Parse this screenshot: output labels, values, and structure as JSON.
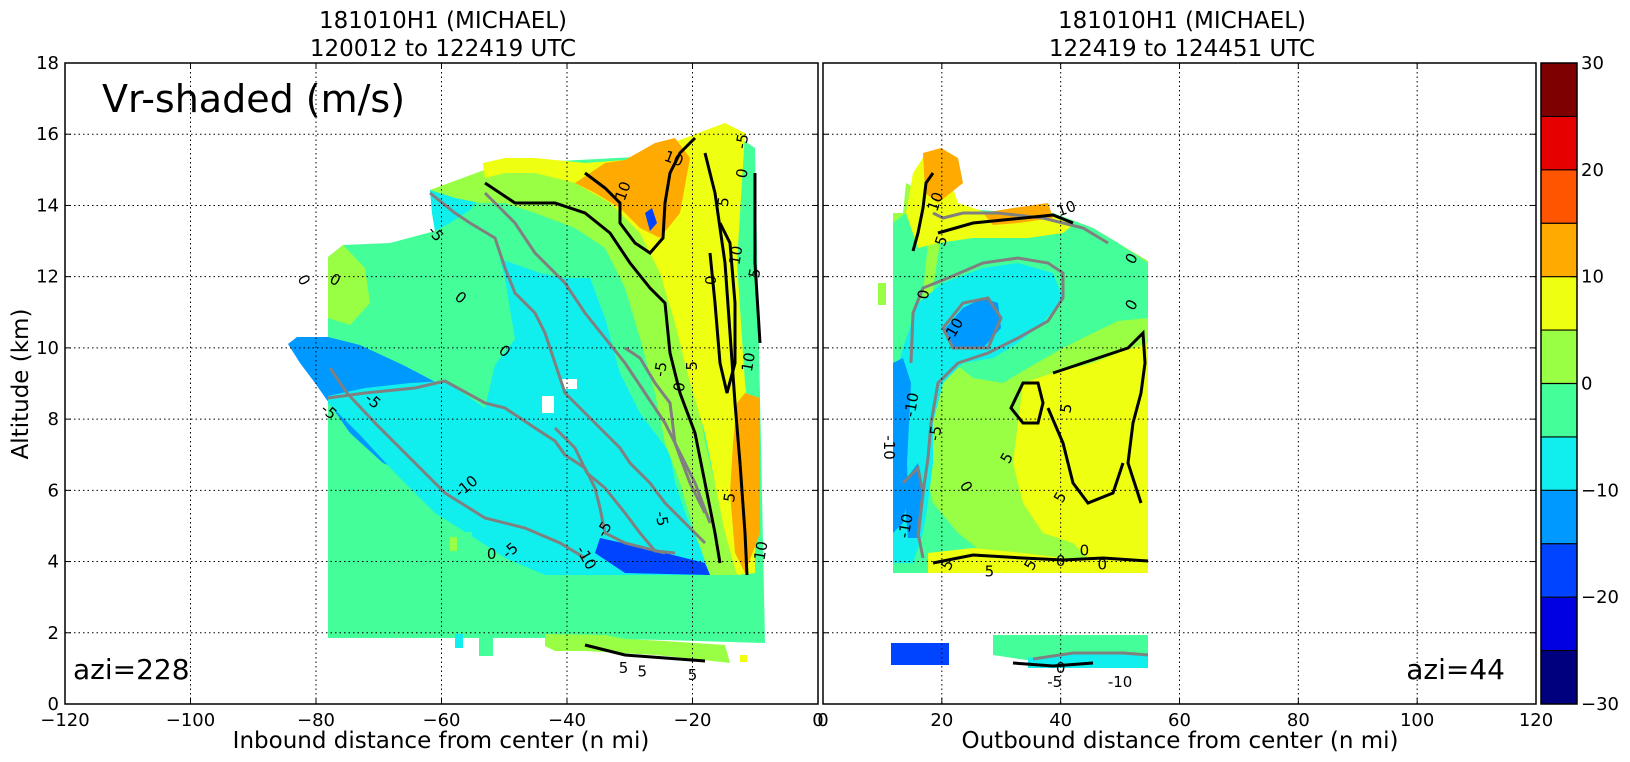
{
  "chart_data": [
    {
      "type": "heatmap",
      "panel": "left",
      "title_line1": "181010H1 (MICHAEL)",
      "title_line2": "120012 to 122419 UTC",
      "xlabel": "Inbound distance from center (n mi)",
      "ylabel": "Altitude (km)",
      "xlim": [
        -120,
        0
      ],
      "ylim": [
        0,
        18
      ],
      "x_ticks": [
        -120,
        -100,
        -80,
        -60,
        -40,
        -20,
        0
      ],
      "y_ticks": [
        0,
        2,
        4,
        6,
        8,
        10,
        12,
        14,
        16,
        18
      ],
      "grid": true,
      "annotation_main": "Vr-shaded (m/s)",
      "annotation_azi": "azi=228",
      "contour_labels": [
        {
          "text": "0",
          "x": -82,
          "y": 11.9,
          "rot": 60
        },
        {
          "text": "0",
          "x": -77,
          "y": 11.9,
          "rot": 30
        },
        {
          "text": "-5",
          "x": -61,
          "y": 13.2,
          "rot": 50
        },
        {
          "text": "0",
          "x": -57,
          "y": 11.4,
          "rot": 40
        },
        {
          "text": "0",
          "x": -50,
          "y": 9.9,
          "rot": 40
        },
        {
          "text": "-5",
          "x": -78,
          "y": 8.2,
          "rot": 40
        },
        {
          "text": "-5",
          "x": -71,
          "y": 8.5,
          "rot": 40
        },
        {
          "text": "-10",
          "x": -56,
          "y": 6.1,
          "rot": -40
        },
        {
          "text": "-5",
          "x": -49,
          "y": 4.3,
          "rot": -40
        },
        {
          "text": "0",
          "x": -52,
          "y": 4.2,
          "rot": 0
        },
        {
          "text": "-10",
          "x": -37,
          "y": 4.1,
          "rot": 60
        },
        {
          "text": "-5",
          "x": -34,
          "y": 4.9,
          "rot": -60
        },
        {
          "text": "-5",
          "x": -25,
          "y": 5.2,
          "rot": 80
        },
        {
          "text": "-5",
          "x": -25,
          "y": 9.4,
          "rot": -80
        },
        {
          "text": "0",
          "x": -22,
          "y": 8.9,
          "rot": -80
        },
        {
          "text": "5",
          "x": -20,
          "y": 9.5,
          "rot": -90
        },
        {
          "text": "0",
          "x": -17,
          "y": 11.9,
          "rot": -90
        },
        {
          "text": "10",
          "x": -31,
          "y": 14.4,
          "rot": -70
        },
        {
          "text": "10",
          "x": -23,
          "y": 15.3,
          "rot": 20
        },
        {
          "text": "5",
          "x": -15,
          "y": 14.1,
          "rot": -80
        },
        {
          "text": "-5",
          "x": -12,
          "y": 15.8,
          "rot": -80
        },
        {
          "text": "0",
          "x": -12,
          "y": 14.9,
          "rot": -80
        },
        {
          "text": "10",
          "x": -13,
          "y": 12.6,
          "rot": -80
        },
        {
          "text": "5",
          "x": -10,
          "y": 12.1,
          "rot": -80
        },
        {
          "text": "10",
          "x": -11,
          "y": 9.6,
          "rot": -80
        },
        {
          "text": "5",
          "x": -14,
          "y": 5.8,
          "rot": -80
        },
        {
          "text": "10",
          "x": -9,
          "y": 4.3,
          "rot": -80
        },
        {
          "text": "5",
          "x": -31,
          "y": 1.0,
          "rot": 0
        },
        {
          "text": "5",
          "x": -28,
          "y": 0.9,
          "rot": 0
        },
        {
          "text": "5",
          "x": -20,
          "y": 0.8,
          "rot": 0
        }
      ]
    },
    {
      "type": "heatmap",
      "panel": "right",
      "title_line1": "181010H1 (MICHAEL)",
      "title_line2": "122419 to 124451 UTC",
      "xlabel": "Outbound distance from center (n mi)",
      "ylabel": "",
      "xlim": [
        0,
        120
      ],
      "ylim": [
        0,
        18
      ],
      "x_ticks": [
        0,
        20,
        40,
        60,
        80,
        100,
        120
      ],
      "grid": true,
      "annotation_azi": "azi=44",
      "contour_labels": [
        {
          "text": "10",
          "x": 19,
          "y": 14.1,
          "rot": -70
        },
        {
          "text": "5",
          "x": 20,
          "y": 13.0,
          "rot": -70
        },
        {
          "text": "10",
          "x": 41,
          "y": 13.9,
          "rot": -20
        },
        {
          "text": "0",
          "x": 17,
          "y": 11.5,
          "rot": -80
        },
        {
          "text": "-10",
          "x": 22,
          "y": 10.5,
          "rot": -60
        },
        {
          "text": "0",
          "x": 52,
          "y": 12.5,
          "rot": -60
        },
        {
          "text": "0",
          "x": 52,
          "y": 11.2,
          "rot": -60
        },
        {
          "text": "-10",
          "x": 15,
          "y": 8.4,
          "rot": -80
        },
        {
          "text": "-5",
          "x": 19,
          "y": 7.6,
          "rot": -80
        },
        {
          "text": "-10",
          "x": 11,
          "y": 7.2,
          "rot": 90
        },
        {
          "text": "5",
          "x": 31,
          "y": 6.9,
          "rot": -60
        },
        {
          "text": "0",
          "x": 24,
          "y": 6.1,
          "rot": 60
        },
        {
          "text": "5",
          "x": 41,
          "y": 8.3,
          "rot": -80
        },
        {
          "text": "5",
          "x": 40,
          "y": 5.8,
          "rot": -60
        },
        {
          "text": "-10",
          "x": 14,
          "y": 5.0,
          "rot": -80
        },
        {
          "text": "5",
          "x": 21,
          "y": 3.9,
          "rot": -60
        },
        {
          "text": "5",
          "x": 28,
          "y": 3.7,
          "rot": 0
        },
        {
          "text": "5",
          "x": 35,
          "y": 3.9,
          "rot": -60
        },
        {
          "text": "0",
          "x": 40,
          "y": 4.0,
          "rot": 0
        },
        {
          "text": "0",
          "x": 44,
          "y": 4.3,
          "rot": 0
        },
        {
          "text": "0",
          "x": 47,
          "y": 3.9,
          "rot": 0
        },
        {
          "text": "0",
          "x": 40,
          "y": 1.0,
          "rot": 0
        },
        {
          "text": "-5",
          "x": 39,
          "y": 0.6,
          "rot": 0
        },
        {
          "text": "-10",
          "x": 50,
          "y": 0.6,
          "rot": 0
        }
      ]
    }
  ],
  "colorbar": {
    "min": -30,
    "max": 30,
    "tick_labels": [
      "30",
      "20",
      "10",
      "0",
      "−10",
      "−20",
      "−30"
    ],
    "tick_values": [
      30,
      20,
      10,
      0,
      -10,
      -20,
      -30
    ],
    "colors": [
      "#00007f",
      "#0000e1",
      "#0044ff",
      "#0099ff",
      "#11eeee",
      "#44ff99",
      "#99ff44",
      "#eeff11",
      "#ffaa00",
      "#ff5500",
      "#e60000",
      "#7f0000"
    ]
  },
  "field_colors": {
    "blue_dark": "#0044ff",
    "blue": "#0099ff",
    "cyan": "#11eeee",
    "green": "#44ff99",
    "lime": "#99ff44",
    "yellow": "#eeff11",
    "orange": "#ffaa00",
    "contour_gray": "#808080",
    "contour_black": "#000000"
  }
}
